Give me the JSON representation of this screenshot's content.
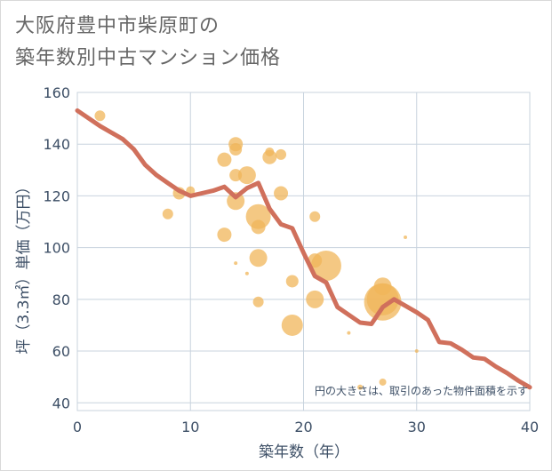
{
  "title": {
    "line1": "大阪府豊中市柴原町の",
    "line2": "築年数別中古マンション価格"
  },
  "chart_data": {
    "type": "scatter",
    "xlabel": "築年数（年）",
    "ylabel": "坪（3.3㎡）単価（万円）",
    "xlim": [
      0,
      40
    ],
    "ylim": [
      37,
      160
    ],
    "xticks": [
      0,
      10,
      20,
      30,
      40
    ],
    "yticks": [
      40,
      60,
      80,
      100,
      120,
      140,
      160
    ],
    "grid": true,
    "note": "円の大きさは、取引のあった物件面積を示す",
    "colors": {
      "bubble": "#f0b55a",
      "line": "#d0705c",
      "grid": "#c8d3de",
      "axis_text": "#3d4f66"
    },
    "bubbles": [
      {
        "x": 2,
        "y": 151,
        "size": 6
      },
      {
        "x": 8,
        "y": 113,
        "size": 6
      },
      {
        "x": 9,
        "y": 121,
        "size": 7
      },
      {
        "x": 10,
        "y": 122,
        "size": 5
      },
      {
        "x": 13,
        "y": 134,
        "size": 8
      },
      {
        "x": 13,
        "y": 105,
        "size": 8
      },
      {
        "x": 14,
        "y": 140,
        "size": 8
      },
      {
        "x": 14,
        "y": 138,
        "size": 7
      },
      {
        "x": 14,
        "y": 128,
        "size": 7
      },
      {
        "x": 14,
        "y": 118,
        "size": 10
      },
      {
        "x": 14,
        "y": 94,
        "size": 2
      },
      {
        "x": 15,
        "y": 128,
        "size": 10
      },
      {
        "x": 15,
        "y": 90,
        "size": 2
      },
      {
        "x": 16,
        "y": 112,
        "size": 14
      },
      {
        "x": 16,
        "y": 108,
        "size": 8
      },
      {
        "x": 16,
        "y": 96,
        "size": 10
      },
      {
        "x": 16,
        "y": 79,
        "size": 6
      },
      {
        "x": 17,
        "y": 135,
        "size": 8
      },
      {
        "x": 17,
        "y": 137,
        "size": 5
      },
      {
        "x": 18,
        "y": 136,
        "size": 6
      },
      {
        "x": 18,
        "y": 121,
        "size": 8
      },
      {
        "x": 19,
        "y": 87,
        "size": 7
      },
      {
        "x": 19,
        "y": 70,
        "size": 12
      },
      {
        "x": 21,
        "y": 112,
        "size": 6
      },
      {
        "x": 21,
        "y": 95,
        "size": 8
      },
      {
        "x": 21,
        "y": 80,
        "size": 10
      },
      {
        "x": 22,
        "y": 93,
        "size": 17
      },
      {
        "x": 24,
        "y": 67,
        "size": 2
      },
      {
        "x": 25,
        "y": 46,
        "size": 3
      },
      {
        "x": 27,
        "y": 85,
        "size": 10
      },
      {
        "x": 27,
        "y": 80,
        "size": 18
      },
      {
        "x": 27,
        "y": 79,
        "size": 21
      },
      {
        "x": 27,
        "y": 48,
        "size": 4
      },
      {
        "x": 29,
        "y": 104,
        "size": 2
      },
      {
        "x": 30,
        "y": 60,
        "size": 2
      }
    ],
    "trend": {
      "x": [
        0,
        2,
        4,
        5,
        6,
        7,
        8,
        9,
        10,
        11,
        12,
        13,
        14,
        15,
        16,
        17,
        18,
        19,
        20,
        21,
        22,
        23,
        24,
        25,
        26,
        27,
        28,
        29,
        30,
        31,
        32,
        33,
        34,
        35,
        36,
        37,
        38,
        39,
        40
      ],
      "y": [
        153,
        147,
        142,
        138,
        132,
        128,
        125,
        122,
        120,
        121,
        122,
        123.5,
        119.5,
        123,
        125,
        115,
        109,
        107.5,
        98,
        89,
        86.5,
        77,
        74,
        71,
        70.5,
        77,
        80,
        77.5,
        75,
        72,
        63.5,
        63,
        60.5,
        57.5,
        57,
        54,
        51.5,
        48.5,
        46
      ]
    }
  }
}
